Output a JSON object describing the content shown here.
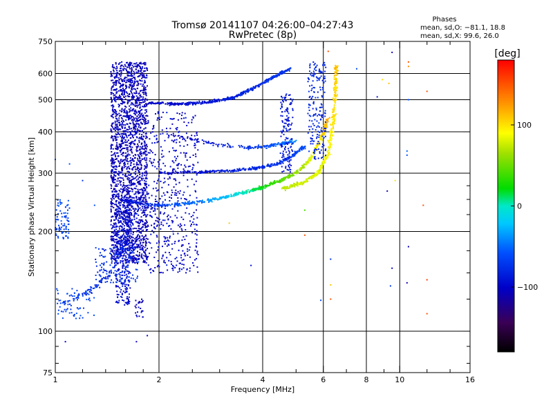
{
  "chart_data": {
    "type": "scatter",
    "title": "Tromsø 20141107 04:26:00–04:27:43",
    "subtitle": "RwPretec (8p)",
    "legend": {
      "heading": "Phases",
      "line1": "mean, sd,O: −81.1, 18.8",
      "line2": "mean, sd,X:  99.6, 26.0"
    },
    "xlabel": "Frequency [MHz]",
    "ylabel": "Stationary phase Virtual Height [km]",
    "xscale": "log",
    "yscale": "log",
    "xlim": [
      1,
      16
    ],
    "ylim": [
      75,
      750
    ],
    "xticks": [
      1,
      2,
      4,
      6,
      8,
      10,
      16
    ],
    "xtick_labels": [
      "1",
      "2",
      "4",
      "6",
      "8",
      "10",
      "16"
    ],
    "x_minor_ticks": [
      1.2,
      1.4,
      1.6,
      1.8,
      2.5,
      3,
      3.5,
      5,
      7,
      9,
      12,
      14
    ],
    "x_gridlines": [
      2,
      4,
      6,
      8,
      10
    ],
    "yticks": [
      75,
      100,
      200,
      300,
      400,
      500,
      600,
      750
    ],
    "ytick_labels": [
      "75",
      "100",
      "200",
      "300",
      "400",
      "500",
      "600",
      "750"
    ],
    "y_minor_ticks": [
      80,
      90,
      125,
      150,
      175,
      225,
      250,
      275
    ],
    "y_gridlines": [
      100,
      200,
      300,
      400,
      500,
      600
    ],
    "grid": true,
    "colorbar": {
      "label": "[deg]",
      "min": -180,
      "max": 180,
      "ticks": [
        100,
        0,
        -100
      ],
      "tick_labels": [
        "100",
        "0",
        "−100"
      ]
    },
    "traces": [
      {
        "kind": "column",
        "f": [
          1.45,
          1.85
        ],
        "h": [
          160,
          650
        ],
        "phase": -105,
        "n": 2200
      },
      {
        "kind": "column",
        "f": [
          1.5,
          1.65
        ],
        "h": [
          120,
          250
        ],
        "phase": -95,
        "n": 300
      },
      {
        "kind": "column",
        "f": [
          1.85,
          2.6
        ],
        "h": [
          150,
          460
        ],
        "phase": -100,
        "n": 500
      },
      {
        "kind": "curve",
        "pts": [
          [
            1.55,
            250
          ],
          [
            1.9,
            240
          ],
          [
            2.3,
            242
          ],
          [
            2.8,
            248
          ],
          [
            3.2,
            256
          ],
          [
            3.6,
            263
          ],
          [
            4.0,
            272
          ],
          [
            4.5,
            285
          ],
          [
            5.0,
            300
          ],
          [
            5.5,
            330
          ],
          [
            5.9,
            380
          ],
          [
            6.2,
            440
          ]
        ],
        "phase": -95,
        "phase_end": 120,
        "n": 700,
        "jitter": 0.016
      },
      {
        "kind": "curve",
        "pts": [
          [
            2.0,
            300
          ],
          [
            2.6,
            302
          ],
          [
            3.2,
            305
          ],
          [
            3.8,
            310
          ],
          [
            4.4,
            320
          ],
          [
            4.9,
            340
          ],
          [
            5.3,
            362
          ]
        ],
        "phase": -100,
        "phase_end": -60,
        "n": 350,
        "jitter": 0.014
      },
      {
        "kind": "curve",
        "pts": [
          [
            2.2,
            390
          ],
          [
            3.0,
            365
          ],
          [
            3.8,
            358
          ],
          [
            4.4,
            365
          ],
          [
            5.0,
            375
          ]
        ],
        "phase": -105,
        "phase_end": -40,
        "n": 180,
        "jitter": 0.02
      },
      {
        "kind": "curve",
        "pts": [
          [
            1.85,
            490
          ],
          [
            2.3,
            485
          ],
          [
            2.8,
            492
          ],
          [
            3.3,
            508
          ],
          [
            3.8,
            545
          ],
          [
            4.3,
            585
          ],
          [
            4.8,
            620
          ]
        ],
        "phase": -100,
        "phase_end": -70,
        "n": 500,
        "jitter": 0.014
      },
      {
        "kind": "curve",
        "pts": [
          [
            4.6,
            270
          ],
          [
            5.2,
            280
          ],
          [
            5.8,
            300
          ],
          [
            6.2,
            345
          ],
          [
            6.4,
            420
          ],
          [
            6.5,
            520
          ],
          [
            6.55,
            640
          ]
        ],
        "phase": 70,
        "phase_end": 110,
        "n": 450,
        "jitter": 0.018
      },
      {
        "kind": "column",
        "f": [
          5.4,
          6.1
        ],
        "h": [
          330,
          650
        ],
        "phase": -80,
        "n": 200
      },
      {
        "kind": "column",
        "f": [
          4.5,
          4.9
        ],
        "h": [
          300,
          520
        ],
        "phase": -90,
        "n": 140
      },
      {
        "kind": "curve",
        "pts": [
          [
            1.05,
            120
          ],
          [
            1.25,
            132
          ],
          [
            1.45,
            150
          ],
          [
            1.6,
            190
          ],
          [
            1.75,
            240
          ]
        ],
        "phase": -70,
        "phase_end": -90,
        "n": 120,
        "jitter": 0.03
      },
      {
        "kind": "column",
        "f": [
          1.3,
          1.75
        ],
        "h": [
          140,
          180
        ],
        "phase": -75,
        "n": 120
      },
      {
        "kind": "column",
        "f": [
          1.0,
          1.1
        ],
        "h": [
          190,
          250
        ],
        "phase": -65,
        "n": 80
      },
      {
        "kind": "column",
        "f": [
          1.0,
          1.3
        ],
        "h": [
          108,
          135
        ],
        "phase": -65,
        "n": 60
      },
      {
        "kind": "column",
        "f": [
          1.7,
          1.8
        ],
        "h": [
          110,
          125
        ],
        "phase": -105,
        "n": 25
      }
    ],
    "scattered_points": [
      {
        "f": 1.07,
        "h": 93,
        "phase": -100
      },
      {
        "f": 1.72,
        "h": 93,
        "phase": -105
      },
      {
        "f": 1.85,
        "h": 97,
        "phase": -100
      },
      {
        "f": 6.2,
        "h": 700,
        "phase": 150
      },
      {
        "f": 9.5,
        "h": 695,
        "phase": -110
      },
      {
        "f": 10.6,
        "h": 650,
        "phase": 150
      },
      {
        "f": 10.6,
        "h": 630,
        "phase": 130
      },
      {
        "f": 7.5,
        "h": 620,
        "phase": -60
      },
      {
        "f": 8.9,
        "h": 575,
        "phase": 100
      },
      {
        "f": 9.3,
        "h": 560,
        "phase": 110
      },
      {
        "f": 8.6,
        "h": 510,
        "phase": -90
      },
      {
        "f": 10.6,
        "h": 500,
        "phase": -60
      },
      {
        "f": 12.0,
        "h": 530,
        "phase": 150
      },
      {
        "f": 10.5,
        "h": 350,
        "phase": -50
      },
      {
        "f": 10.5,
        "h": 340,
        "phase": -60
      },
      {
        "f": 9.7,
        "h": 285,
        "phase": 100
      },
      {
        "f": 9.2,
        "h": 265,
        "phase": -110
      },
      {
        "f": 11.7,
        "h": 240,
        "phase": 150
      },
      {
        "f": 10.6,
        "h": 180,
        "phase": -105
      },
      {
        "f": 9.5,
        "h": 155,
        "phase": -105
      },
      {
        "f": 9.4,
        "h": 137,
        "phase": -70
      },
      {
        "f": 10.5,
        "h": 140,
        "phase": -110
      },
      {
        "f": 12.0,
        "h": 143,
        "phase": 160
      },
      {
        "f": 12.0,
        "h": 113,
        "phase": 150
      },
      {
        "f": 6.3,
        "h": 165,
        "phase": -75
      },
      {
        "f": 6.3,
        "h": 138,
        "phase": 110
      },
      {
        "f": 6.3,
        "h": 125,
        "phase": 150
      },
      {
        "f": 5.9,
        "h": 124,
        "phase": -60
      },
      {
        "f": 5.3,
        "h": 195,
        "phase": 150
      },
      {
        "f": 5.3,
        "h": 232,
        "phase": 40
      },
      {
        "f": 3.2,
        "h": 212,
        "phase": 110
      },
      {
        "f": 3.7,
        "h": 158,
        "phase": -90
      },
      {
        "f": 1.0,
        "h": 330,
        "phase": -50
      },
      {
        "f": 1.1,
        "h": 320,
        "phase": -60
      },
      {
        "f": 1.2,
        "h": 285,
        "phase": -70
      },
      {
        "f": 1.3,
        "h": 240,
        "phase": -60
      }
    ]
  }
}
